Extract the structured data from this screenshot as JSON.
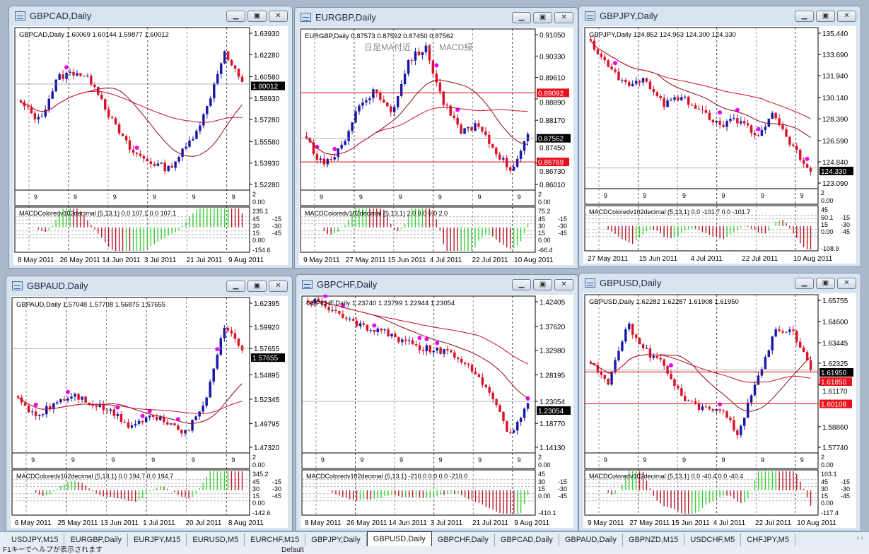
{
  "windows": [
    {
      "title": "GBPCAD,Daily",
      "header": "GBPCAD,Daily  1.60069 1.60144 1.59877 1.60012",
      "y_ticks": [
        "1.63930",
        "1.62280",
        "1.60580",
        "1.58930",
        "1.57280",
        "1.55580",
        "1.53930",
        "1.52280"
      ],
      "last_price": "1.60012",
      "red_levels": [],
      "closes_approx": [
        1.585,
        1.572,
        1.605,
        1.61,
        1.6,
        1.57,
        1.548,
        1.54,
        1.535,
        1.552,
        1.578,
        1.625,
        1.6
      ],
      "sub_ticks": [
        "2",
        "0.00"
      ],
      "macd_label": "MACDColoredv102decimal (5,13,1) 0.0 107.1 0.0 107.1",
      "macd_ticks": [
        "235.1",
        "45",
        "30",
        "15",
        "0.00",
        "-15",
        "-30",
        "-45",
        "-154.6"
      ],
      "dates": [
        "8 May 2011",
        "26 May 2011",
        "14 Jun 2011",
        "3 Jul 2011",
        "21 Jul 2011",
        "9 Aug 2011"
      ],
      "annotations": []
    },
    {
      "title": "EURGBP,Daily",
      "header": "EURGBP,Daily  0.87573 0.87592 0.87450 0.87562",
      "y_ticks": [
        "0.91050",
        "0.90330",
        "0.89610",
        "0.88890",
        "0.88170",
        "0.87450",
        "0.86730",
        "0.86010"
      ],
      "last_price": "0.87562",
      "red_levels": [
        "0.89092",
        "0.86769"
      ],
      "closes_approx": [
        0.875,
        0.866,
        0.872,
        0.886,
        0.892,
        0.884,
        0.902,
        0.906,
        0.888,
        0.878,
        0.88,
        0.872,
        0.865,
        0.876
      ],
      "sub_ticks": [
        "2",
        "0.00"
      ],
      "macd_label": "MACDColoredv102decimal (5,13,1) 2.0 0.0 0.0 2.0",
      "macd_ticks": [
        "75.2",
        "45",
        "30",
        "15",
        "0.00",
        "-15",
        "-30",
        "-45",
        "-66.4"
      ],
      "dates": [
        "9 May 2011",
        "27 May 2011",
        "15 Jun 2011",
        "4 Jul 2011",
        "22 Jul 2011",
        "10 Aug 2011"
      ],
      "annotations": [
        "日足MA付近",
        "1",
        "MACD緑"
      ]
    },
    {
      "title": "GBPJPY,Daily",
      "header": "GBPJPY,Daily  124.852 124.963 124.300 124.330",
      "y_ticks": [
        "135.440",
        "133.690",
        "131.940",
        "130.140",
        "128.390",
        "126.590",
        "124.840",
        "123.090"
      ],
      "last_price": "124.330",
      "red_levels": [],
      "closes_approx": [
        134.6,
        132.5,
        131.2,
        131.5,
        129.5,
        130.2,
        129.0,
        127.8,
        128.3,
        127.0,
        128.8,
        126.0,
        124.3
      ],
      "sub_ticks": [
        "2",
        "0.00"
      ],
      "macd_label": "MACDColoredv102decimal (5,13,1) 0.0 -101.7 0.0 -101.7",
      "macd_ticks": [
        "45",
        "50.1",
        "15",
        "0.00",
        "-15",
        "-30",
        "-45",
        "-108.9"
      ],
      "dates": [
        "27 May 2011",
        "15 Jun 2011",
        "4 Jul 2011",
        "22 Jul 2011",
        "10 Aug 2011"
      ],
      "annotations": []
    },
    {
      "title": "GBPAUD,Daily",
      "header": "GBPAUD,Daily  1.57048 1.57708 1.56875 1.57655",
      "y_ticks": [
        "1.62395",
        "1.59920",
        "1.57655",
        "1.54895",
        "1.52345",
        "1.49795",
        "1.47320"
      ],
      "last_price": "1.57655",
      "red_levels": [],
      "closes_approx": [
        1.522,
        1.505,
        1.52,
        1.528,
        1.518,
        1.51,
        1.495,
        1.505,
        1.5,
        1.488,
        1.52,
        1.6,
        1.577
      ],
      "sub_ticks": [
        "2",
        "0.00"
      ],
      "macd_label": "MACDColoredv102decimal (5,13,1) 0.0 194.7 0.0 194.7",
      "macd_ticks": [
        "345.2",
        "45",
        "30",
        "15",
        "0.00",
        "-15",
        "-30",
        "-45",
        "-142.6"
      ],
      "dates": [
        "6 May 2011",
        "25 May 2011",
        "13 Jun 2011",
        "1 Jul 2011",
        "20 Jul 2011",
        "8 Aug 2011"
      ],
      "annotations": []
    },
    {
      "title": "GBPCHF,Daily",
      "header": "GBPCHF,Daily  1.23740 1.23799 1.22944 1.23054",
      "y_ticks": [
        "1.42405",
        "1.37620",
        "1.32980",
        "1.28195",
        "1.23054",
        "1.18770",
        "1.14130"
      ],
      "last_price": "1.23054",
      "red_levels": [],
      "closes_approx": [
        1.43,
        1.415,
        1.39,
        1.375,
        1.37,
        1.35,
        1.335,
        1.33,
        1.32,
        1.29,
        1.25,
        1.16,
        1.23
      ],
      "sub_ticks": [
        "2",
        "0.00"
      ],
      "macd_label": "MACDColoredv102decimal (5,13,1) -210.0 0.0 0.0 -210.0",
      "macd_ticks": [
        "45",
        "30",
        "15",
        "0.00",
        "-15",
        "-30",
        "-45",
        "-410.1"
      ],
      "dates": [
        "8 May 2011",
        "26 May 2011",
        "14 Jun 2011",
        "3 Jul 2011",
        "21 Jul 2011",
        "9 Aug 2011"
      ],
      "annotations": []
    },
    {
      "title": "GBPUSD,Daily",
      "header": "GBPUSD,Daily  1.62282 1.62287 1.61908 1.61950",
      "y_ticks": [
        "1.65755",
        "1.64600",
        "1.63445",
        "1.62325",
        "1.61170",
        "1.58860",
        "1.57740"
      ],
      "last_price": "1.61950",
      "red_levels": [
        "1.61850",
        "1.60108"
      ],
      "closes_approx": [
        1.625,
        1.612,
        1.645,
        1.63,
        1.622,
        1.605,
        1.598,
        1.6,
        1.585,
        1.612,
        1.64,
        1.642,
        1.62
      ],
      "sub_ticks": [
        "2",
        "0.00"
      ],
      "macd_label": "MACDColoredv102decimal (5,13,1) 0.0 -40.4 0.0 -40.4",
      "macd_ticks": [
        "103.1",
        "45",
        "30",
        "15",
        "0.00",
        "-15",
        "-30",
        "-45",
        "-117.4"
      ],
      "dates": [
        "9 May 2011",
        "27 May 2011",
        "15 Jun 2011",
        "4 Jul 2011",
        "22 Jul 2011",
        "10 Aug 2011"
      ],
      "annotations": []
    }
  ],
  "sub_marker": "9",
  "tabs": [
    "USDJPY,M15",
    "EURGBP,Daily",
    "EURJPY,M15",
    "EURUSD,M5",
    "EURCHF,M15",
    "GBPJPY,Daily",
    "GBPUSD,Daily",
    "GBPCHF,Daily",
    "GBPCAD,Daily",
    "GBPAUD,Daily",
    "GBPNZD,M15",
    "USDCHF,M5",
    "CHFJPY,M5"
  ],
  "active_tab": "GBPUSD,Daily",
  "status": {
    "help": "F1キーでヘルプが表示されます",
    "profile": "Default"
  },
  "colors": {
    "bull": "#1a1aa6",
    "bear": "#d9142a",
    "ma_slow": "#8b0a14",
    "ma_fast": "#c8102e",
    "signal_up": "#1e90ff",
    "signal_dot": "#ee00ee",
    "cyan": "#00d7e6",
    "macd_up": "#3ccf3c",
    "macd_down": "#b81a2a",
    "last_bg": "#000000",
    "level_bg": "#e8101a"
  },
  "icons": {
    "window": "chart-window-icon",
    "minimize": "minimize-icon",
    "restore": "restore-icon",
    "close": "close-icon"
  }
}
